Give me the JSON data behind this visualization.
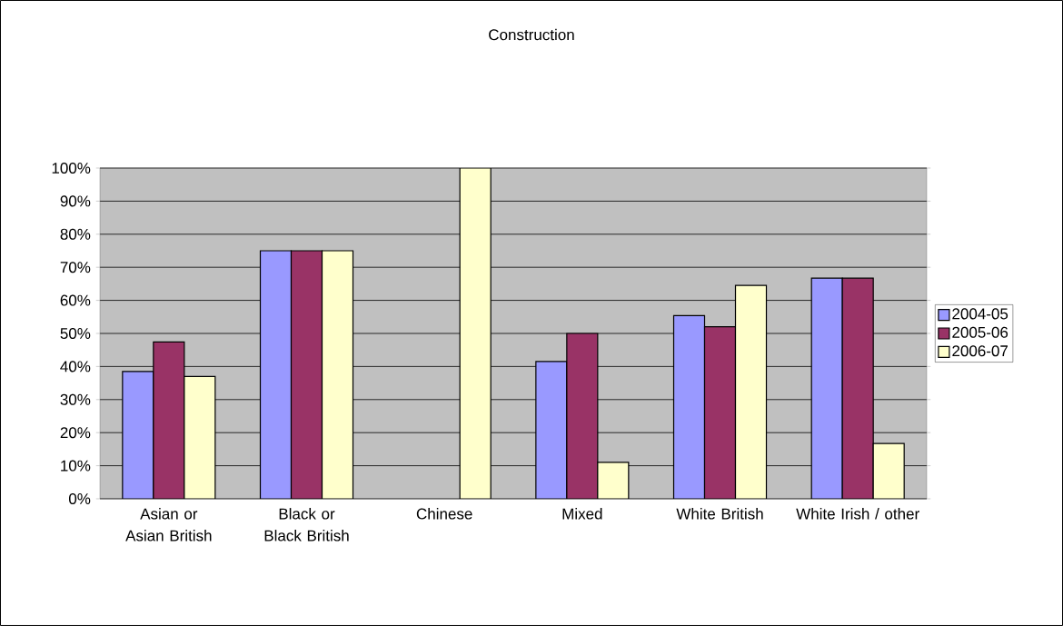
{
  "chart_data": {
    "type": "bar",
    "title": "Construction",
    "categories": [
      "Asian or Asian British",
      "Black or Black British",
      "Chinese",
      "Mixed",
      "White British",
      "White Irish / other"
    ],
    "series": [
      {
        "name": "2004-05",
        "color": "#9999ff",
        "values": [
          38.5,
          75,
          null,
          41.5,
          55.4,
          66.7
        ]
      },
      {
        "name": "2005-06",
        "color": "#993366",
        "values": [
          47.4,
          75,
          null,
          50,
          52,
          66.7
        ]
      },
      {
        "name": "2006-07",
        "color": "#ffffcc",
        "values": [
          37,
          75,
          100,
          11,
          64.5,
          16.7
        ]
      }
    ],
    "ylim": [
      0,
      100
    ],
    "yticks": [
      {
        "value": 0,
        "label": "0%"
      },
      {
        "value": 10,
        "label": "10%"
      },
      {
        "value": 20,
        "label": "20%"
      },
      {
        "value": 30,
        "label": "30%"
      },
      {
        "value": 40,
        "label": "40%"
      },
      {
        "value": 50,
        "label": "50%"
      },
      {
        "value": 60,
        "label": "60%"
      },
      {
        "value": 70,
        "label": "70%"
      },
      {
        "value": 80,
        "label": "80%"
      },
      {
        "value": 90,
        "label": "90%"
      },
      {
        "value": 100,
        "label": "100%"
      }
    ],
    "grid": "y",
    "legend": "right"
  }
}
